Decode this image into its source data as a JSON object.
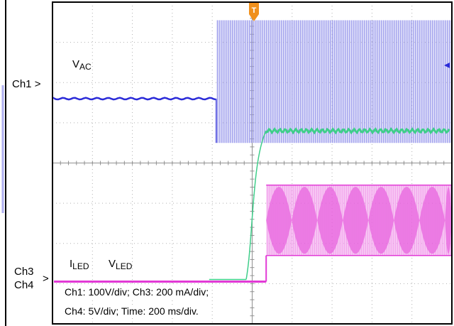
{
  "chart_data": {
    "type": "line",
    "grid": "dotted, 10 x 8 divisions",
    "trigger_marker": "T",
    "channel_labels": {
      "ch1": "Ch1",
      "ch3": "Ch3",
      "ch4": "Ch4"
    },
    "trace_labels": {
      "vac": {
        "main": "V",
        "sub": "AC"
      },
      "iled": {
        "main": "I",
        "sub": "LED"
      },
      "vled": {
        "main": "V",
        "sub": "LED"
      }
    },
    "settings": {
      "line1": "Ch1: 100V/div; Ch3: 200 mA/div;",
      "line2": "Ch4: 5V/div; Time: 200 ms/div."
    },
    "colors": {
      "ch1": "#2a2ad8",
      "ch1_envelope": "#b0b0f0",
      "ch3": "#e23ad6",
      "ch3_envelope": "#f2a6ec",
      "ch4": "#3fce8a",
      "trigger": "#f0901c",
      "grid": "#b0b0b0"
    },
    "x_range_div": [
      0,
      10
    ],
    "y_range_div": [
      0,
      8
    ],
    "series": [
      {
        "name": "VAC",
        "channel": "Ch1",
        "color": "#2a2ad8",
        "baseline_div": 5.6,
        "on_at_div": 4.1,
        "envelope_top_div": 7.55,
        "envelope_bottom_div": 4.5
      },
      {
        "name": "VLED",
        "channel": "Ch4",
        "color": "#3fce8a",
        "baseline_div": 1.05,
        "ramp_start_div": 4.85,
        "ramp_end_div": 5.35,
        "settled_div": 4.8
      },
      {
        "name": "ILED",
        "channel": "Ch3",
        "color": "#e23ad6",
        "baseline_div": 1.05,
        "on_at_div": 5.35,
        "envelope_top_div": 3.45,
        "envelope_bottom_div": 1.7
      }
    ]
  }
}
